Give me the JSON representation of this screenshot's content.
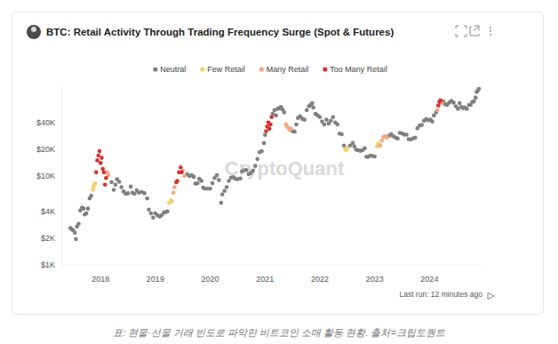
{
  "chart_data": {
    "type": "scatter",
    "title": "BTC: Retail Activity Through Trading Frequency Surge (Spot & Futures)",
    "watermark": "CryptoQuant",
    "footer": "Last run: 12 minutes ago",
    "caption": "표: 현물·선물 거래 빈도로 파악한 비트코인 소매 활동 현황. 출처=크립토퀀트",
    "log": "y",
    "grid": false,
    "marker": "circle",
    "legend": "top",
    "xlim": [
      2017.3,
      2024.95
    ],
    "xticks": [
      2018,
      2019,
      2020,
      2021,
      2022,
      2023,
      2024
    ],
    "ylim": [
      1000,
      100000
    ],
    "yticks": [
      {
        "value": 1000,
        "label": "$1K"
      },
      {
        "value": 2000,
        "label": "$2K"
      },
      {
        "value": 4000,
        "label": "$4K"
      },
      {
        "value": 10000,
        "label": "$10K"
      },
      {
        "value": 20000,
        "label": "$20K"
      },
      {
        "value": 40000,
        "label": "$40K"
      }
    ],
    "series": [
      {
        "name": "Neutral",
        "color": "#7f7f7f",
        "x": [
          2017.45,
          2017.48,
          2017.5,
          2017.53,
          2017.55,
          2017.57,
          2017.6,
          2017.63,
          2017.66,
          2017.69,
          2017.71,
          2017.74,
          2017.77,
          2017.8,
          2017.83,
          2018.2,
          2018.24,
          2018.27,
          2018.3,
          2018.34,
          2018.38,
          2018.42,
          2018.46,
          2018.5,
          2018.55,
          2018.58,
          2018.62,
          2018.66,
          2018.7,
          2018.75,
          2018.8,
          2018.85,
          2018.88,
          2018.92,
          2018.96,
          2019.0,
          2019.04,
          2019.08,
          2019.12,
          2019.16,
          2019.2,
          2019.22,
          2019.58,
          2019.62,
          2019.66,
          2019.7,
          2019.73,
          2019.77,
          2019.8,
          2019.84,
          2019.87,
          2019.9,
          2019.95,
          2020.0,
          2020.04,
          2020.08,
          2020.12,
          2020.16,
          2020.2,
          2020.22,
          2020.26,
          2020.3,
          2020.34,
          2020.38,
          2020.42,
          2020.46,
          2020.5,
          2020.55,
          2020.58,
          2020.62,
          2020.66,
          2020.7,
          2020.74,
          2020.78,
          2020.82,
          2020.86,
          2020.9,
          2020.94,
          2020.98,
          2021.0,
          2021.14,
          2021.17,
          2021.2,
          2021.23,
          2021.26,
          2021.29,
          2021.32,
          2021.35,
          2021.5,
          2021.54,
          2021.57,
          2021.6,
          2021.64,
          2021.68,
          2021.72,
          2021.76,
          2021.8,
          2021.83,
          2021.86,
          2021.88,
          2021.92,
          2021.96,
          2022.0,
          2022.04,
          2022.08,
          2022.12,
          2022.16,
          2022.2,
          2022.24,
          2022.28,
          2022.32,
          2022.36,
          2022.4,
          2022.44,
          2022.55,
          2022.6,
          2022.63,
          2022.66,
          2022.7,
          2022.74,
          2022.78,
          2022.82,
          2022.85,
          2022.88,
          2022.92,
          2022.96,
          2023.0,
          2023.27,
          2023.3,
          2023.34,
          2023.38,
          2023.42,
          2023.46,
          2023.5,
          2023.54,
          2023.58,
          2023.62,
          2023.66,
          2023.7,
          2023.74,
          2023.78,
          2023.82,
          2023.86,
          2023.9,
          2023.94,
          2023.98,
          2024.02,
          2024.05,
          2024.08,
          2024.12,
          2024.25,
          2024.29,
          2024.32,
          2024.36,
          2024.4,
          2024.44,
          2024.48,
          2024.52,
          2024.55,
          2024.58,
          2024.61,
          2024.64,
          2024.68,
          2024.72,
          2024.75,
          2024.78,
          2024.81,
          2024.84,
          2024.86,
          2024.88,
          2024.9
        ],
        "values": [
          2600,
          2500,
          2450,
          2300,
          1950,
          2700,
          2900,
          4100,
          4400,
          4300,
          3700,
          3800,
          4300,
          5600,
          6000,
          8500,
          7000,
          8000,
          9200,
          8600,
          7500,
          6700,
          6300,
          6400,
          7600,
          6500,
          6300,
          6900,
          6500,
          6600,
          6400,
          5600,
          4200,
          3800,
          3400,
          3800,
          3600,
          3500,
          3650,
          3900,
          3950,
          4000,
          10500,
          10000,
          10200,
          9800,
          8200,
          8300,
          9300,
          8800,
          7400,
          7200,
          7200,
          7200,
          8300,
          9500,
          10200,
          9000,
          5000,
          6200,
          6800,
          7500,
          8800,
          9600,
          9700,
          9300,
          9200,
          9400,
          11300,
          11600,
          11700,
          10500,
          10800,
          11500,
          13000,
          15500,
          18500,
          19000,
          23500,
          29000,
          50000,
          55000,
          48000,
          57000,
          58000,
          60000,
          56000,
          52000,
          32000,
          31500,
          38000,
          45000,
          47000,
          44000,
          43000,
          55000,
          61000,
          63000,
          66000,
          59000,
          50000,
          48000,
          46000,
          41000,
          38000,
          43000,
          39000,
          42000,
          46000,
          40000,
          38000,
          30000,
          29500,
          22000,
          22000,
          23500,
          21500,
          19800,
          19500,
          19200,
          19500,
          20500,
          16500,
          16400,
          17000,
          16800,
          16600,
          28500,
          29500,
          28000,
          27000,
          26500,
          30500,
          30200,
          29200,
          29200,
          26000,
          25800,
          26500,
          27000,
          34500,
          37000,
          37500,
          42000,
          43500,
          42500,
          43000,
          41000,
          48000,
          52000,
          69000,
          64000,
          63000,
          67000,
          70000,
          67000,
          61000,
          57000,
          66000,
          60000,
          58000,
          59000,
          57000,
          63000,
          63000,
          68000,
          69000,
          76000,
          88000,
          91000,
          96000
        ]
      },
      {
        "name": "Few Retail",
        "color": "#f2d16b",
        "x": [
          2017.86,
          2017.87,
          2017.88,
          2017.9,
          2019.25,
          2019.28,
          2019.3,
          2022.46,
          2022.48,
          2022.5,
          2023.04,
          2023.06,
          2023.08
        ],
        "values": [
          7000,
          7600,
          7800,
          8200,
          5000,
          5300,
          5200,
          20000,
          19500,
          20500,
          21500,
          23000,
          22500
        ]
      },
      {
        "name": "Many Retail",
        "color": "#f4a582",
        "x": [
          2018.12,
          2018.14,
          2019.33,
          2019.35,
          2019.5,
          2019.53,
          2021.38,
          2021.4,
          2021.42,
          2021.45,
          2021.47,
          2023.1,
          2023.13,
          2023.16,
          2023.2,
          2023.23,
          2024.14,
          2024.22
        ],
        "values": [
          11000,
          10200,
          6500,
          7500,
          11500,
          10000,
          38000,
          36000,
          35000,
          33000,
          34000,
          22000,
          25000,
          27500,
          28000,
          27000,
          55000,
          66000
        ]
      },
      {
        "name": "Too Many Retail",
        "color": "#d6312b",
        "x": [
          2017.92,
          2017.94,
          2017.96,
          2017.98,
          2018.0,
          2018.02,
          2018.04,
          2018.06,
          2018.08,
          2018.1,
          2019.38,
          2019.4,
          2019.43,
          2019.46,
          2019.48,
          2021.02,
          2021.04,
          2021.06,
          2021.08,
          2021.1,
          2021.12,
          2024.16,
          2024.18,
          2024.2
        ],
        "values": [
          11000,
          15000,
          17000,
          19000,
          14000,
          16000,
          12000,
          11000,
          8000,
          9500,
          8500,
          8800,
          11000,
          12500,
          11000,
          32000,
          36000,
          40000,
          34000,
          38000,
          46000,
          62000,
          68000,
          71000
        ]
      }
    ]
  }
}
